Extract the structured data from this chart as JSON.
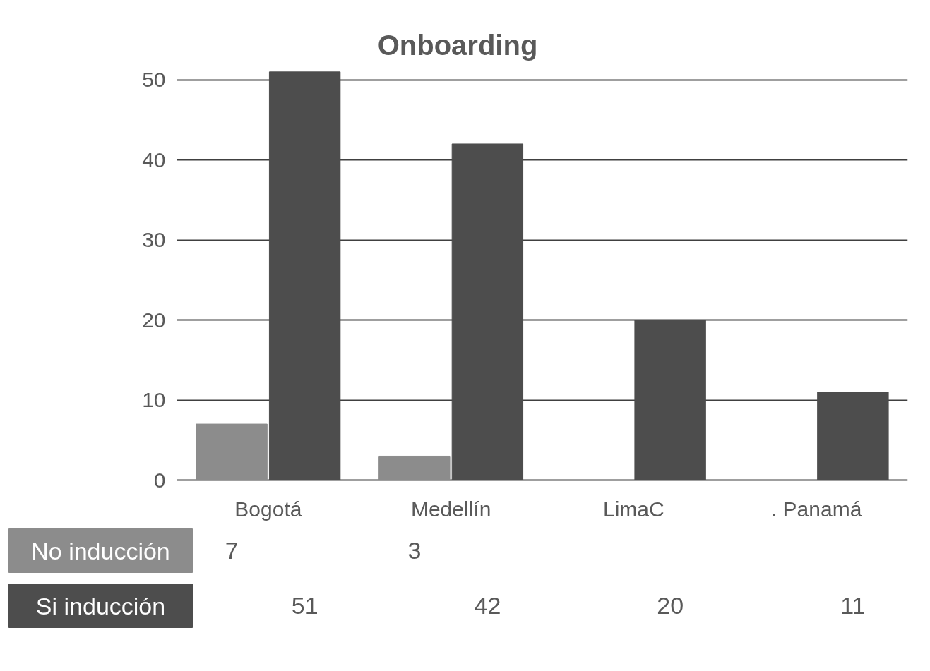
{
  "chart_data": {
    "type": "bar",
    "title": "Onboarding",
    "categories": [
      "Bogotá",
      "Medellín",
      "LimaC",
      ". Panamá"
    ],
    "series": [
      {
        "name": "No inducción",
        "color": "#8c8c8c",
        "values": [
          7,
          3,
          null,
          null
        ]
      },
      {
        "name": "Si inducción",
        "color": "#4d4d4d",
        "values": [
          51,
          42,
          20,
          11
        ]
      }
    ],
    "ylim": [
      0,
      52
    ],
    "yticks": [
      0,
      10,
      20,
      30,
      40,
      50
    ],
    "grid": "y",
    "data_labels": true
  }
}
